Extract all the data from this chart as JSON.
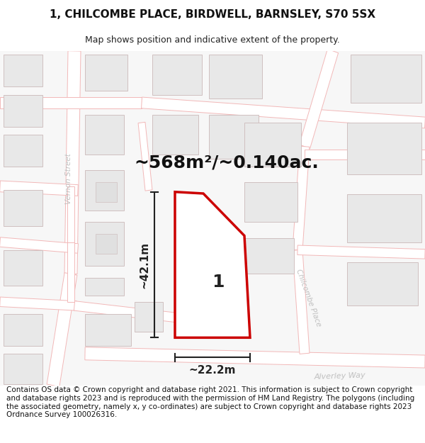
{
  "title_line1": "1, CHILCOMBE PLACE, BIRDWELL, BARNSLEY, S70 5SX",
  "title_line2": "Map shows position and indicative extent of the property.",
  "area_label": "~568m²/~0.140ac.",
  "dim_height": "~42.1m",
  "dim_width": "~22.2m",
  "plot_number": "1",
  "road_label_1": "Vernon Street",
  "road_label_2": "Chilcombe Place",
  "road_label_3": "Alverley Way",
  "footer_text": "Contains OS data © Crown copyright and database right 2021. This information is subject to Crown copyright and database rights 2023 and is reproduced with the permission of HM Land Registry. The polygons (including the associated geometry, namely x, y co-ordinates) are subject to Crown copyright and database rights 2023 Ordnance Survey 100026316.",
  "bg_color": "#ffffff",
  "map_bg": "#f7f7f7",
  "road_color": "#f2b8b8",
  "road_fill": "#ffffff",
  "building_fill": "#e8e8e8",
  "building_stroke": "#d0c0c0",
  "plot_fill": "#ffffff",
  "plot_stroke": "#cc0000",
  "dim_color": "#222222",
  "road_text_color": "#c0c0c0",
  "title_fontsize": 11,
  "subtitle_fontsize": 9,
  "area_fontsize": 18,
  "dim_fontsize": 11,
  "plot_num_fontsize": 18,
  "footer_fontsize": 7.5,
  "road_lw": 1.0,
  "road_fill_lw": 8.0
}
